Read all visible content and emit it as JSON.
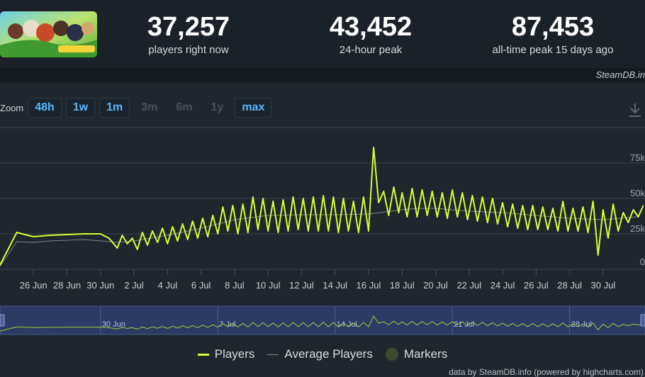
{
  "stats": [
    {
      "value": "37,257",
      "label": "players right now"
    },
    {
      "value": "43,452",
      "label": "24-hour peak"
    },
    {
      "value": "87,453",
      "label": "all-time peak 15 days ago"
    }
  ],
  "watermark": "SteamDB.in",
  "zoom": {
    "label": "Zoom",
    "buttons": [
      {
        "label": "48h",
        "enabled": true
      },
      {
        "label": "1w",
        "enabled": true
      },
      {
        "label": "1m",
        "enabled": true
      },
      {
        "label": "3m",
        "enabled": false
      },
      {
        "label": "6m",
        "enabled": false
      },
      {
        "label": "1y",
        "enabled": false
      },
      {
        "label": "max",
        "enabled": true
      }
    ]
  },
  "legend": {
    "players": "Players",
    "average": "Average Players",
    "markers": "Markers"
  },
  "credits": "data by SteamDB.info (powered by highcharts.com)",
  "colors": {
    "players": "#d4ff33",
    "average": "#7b848c",
    "grid": "#3a434d"
  },
  "chart_data": {
    "type": "line",
    "x_start": "2022-06-24",
    "x_range_days": [
      0,
      38.5
    ],
    "ylim": [
      0,
      100000
    ],
    "yticks": [
      0,
      25000,
      50000,
      75000
    ],
    "ytick_labels": [
      "0",
      "25k",
      "50k",
      "75k"
    ],
    "xticks": [
      {
        "day": 2,
        "label": "26 Jun"
      },
      {
        "day": 4,
        "label": "28 Jun"
      },
      {
        "day": 6,
        "label": "30 Jun"
      },
      {
        "day": 8,
        "label": "2 Jul"
      },
      {
        "day": 10,
        "label": "4 Jul"
      },
      {
        "day": 12,
        "label": "6 Jul"
      },
      {
        "day": 14,
        "label": "8 Jul"
      },
      {
        "day": 16,
        "label": "10 Jul"
      },
      {
        "day": 18,
        "label": "12 Jul"
      },
      {
        "day": 20,
        "label": "14 Jul"
      },
      {
        "day": 22,
        "label": "16 Jul"
      },
      {
        "day": 24,
        "label": "18 Jul"
      },
      {
        "day": 26,
        "label": "20 Jul"
      },
      {
        "day": 28,
        "label": "22 Jul"
      },
      {
        "day": 30,
        "label": "24 Jul"
      },
      {
        "day": 32,
        "label": "26 Jul"
      },
      {
        "day": 34,
        "label": "28 Jul"
      },
      {
        "day": 36,
        "label": "30 Jul"
      }
    ],
    "navigator_labels": [
      {
        "day": 6,
        "label": "30 Jun"
      },
      {
        "day": 13,
        "label": "7 Jul"
      },
      {
        "day": 20,
        "label": "14 Jul"
      },
      {
        "day": 27,
        "label": "21 Jul"
      },
      {
        "day": 34,
        "label": "28 Jul"
      }
    ],
    "series": [
      {
        "name": "Players",
        "x": [
          0,
          1,
          2,
          3,
          4,
          5,
          6,
          6.5,
          7,
          7.3,
          7.6,
          7.9,
          8.2,
          8.5,
          8.8,
          9.1,
          9.4,
          9.7,
          10,
          10.3,
          10.6,
          10.9,
          11.2,
          11.5,
          11.8,
          12.1,
          12.4,
          12.7,
          13,
          13.3,
          13.6,
          13.9,
          14.2,
          14.5,
          14.8,
          15.1,
          15.4,
          15.7,
          16,
          16.3,
          16.6,
          16.9,
          17.2,
          17.5,
          17.8,
          18.1,
          18.4,
          18.7,
          19,
          19.3,
          19.6,
          19.9,
          20.2,
          20.5,
          20.8,
          21.1,
          21.4,
          21.7,
          22,
          22.3,
          22.6,
          22.9,
          23.2,
          23.5,
          23.8,
          24,
          24.3,
          24.6,
          24.9,
          25.2,
          25.5,
          25.8,
          26.1,
          26.4,
          26.7,
          27,
          27.3,
          27.6,
          27.9,
          28.2,
          28.5,
          28.8,
          29.1,
          29.4,
          29.7,
          30,
          30.3,
          30.6,
          30.9,
          31.2,
          31.5,
          31.8,
          32.1,
          32.4,
          32.7,
          33,
          33.3,
          33.6,
          33.9,
          34.2,
          34.5,
          34.8,
          35.1,
          35.4,
          35.7,
          36,
          36.3,
          36.6,
          36.9,
          37.2,
          37.5,
          37.8,
          38.1,
          38.4
        ],
        "y": [
          3000,
          26000,
          23000,
          24000,
          24500,
          25000,
          25000,
          22000,
          15000,
          24000,
          18000,
          22000,
          14000,
          26000,
          17000,
          27000,
          19000,
          29000,
          18000,
          30000,
          20000,
          32000,
          21000,
          34000,
          22000,
          36000,
          23000,
          38000,
          25000,
          44000,
          27000,
          45000,
          25000,
          46000,
          26000,
          51000,
          28000,
          50000,
          27000,
          48000,
          26000,
          49000,
          27000,
          51000,
          28000,
          50000,
          27000,
          51000,
          27000,
          52000,
          27000,
          51000,
          26000,
          50000,
          27000,
          48000,
          26000,
          51000,
          27000,
          86000,
          47000,
          55000,
          38000,
          58000,
          40000,
          54000,
          37000,
          57000,
          37000,
          56000,
          38000,
          55000,
          37000,
          54000,
          36000,
          56000,
          37000,
          54000,
          35000,
          52000,
          34000,
          51000,
          33000,
          50000,
          32000,
          47000,
          30000,
          46000,
          29000,
          45000,
          28000,
          45000,
          28000,
          44000,
          28000,
          43000,
          27000,
          48000,
          27000,
          43000,
          27000,
          44000,
          26000,
          48000,
          10000,
          42000,
          22000,
          46000,
          27000,
          40000,
          33000,
          42000,
          37000,
          45000
        ]
      },
      {
        "name": "Average Players",
        "x": [
          0,
          1,
          2,
          3,
          4,
          5,
          6,
          7,
          8,
          10,
          12,
          14,
          16,
          18,
          20,
          22,
          24,
          25,
          26,
          28,
          30,
          32,
          34,
          36,
          38
        ],
        "y": [
          2000,
          19500,
          19000,
          20000,
          20500,
          21000,
          20000,
          19000,
          20000,
          24000,
          29000,
          35000,
          38000,
          38500,
          38500,
          39000,
          42000,
          43000,
          43000,
          41000,
          40000,
          38000,
          36000,
          35000,
          37000
        ]
      }
    ]
  }
}
